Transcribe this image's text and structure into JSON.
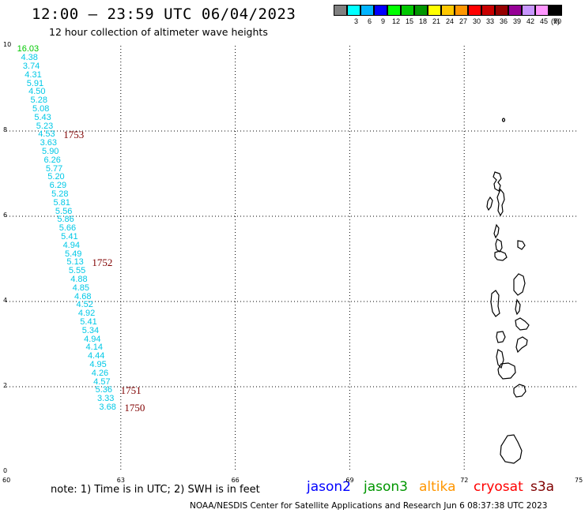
{
  "header": {
    "title": "12:00 — 23:59 UTC 06/04/2023",
    "subtitle": "12 hour collection of altimeter wave heights"
  },
  "colorbar": {
    "unit": "(ft)",
    "bins": [
      {
        "label": "",
        "color": "#808080"
      },
      {
        "label": "3",
        "color": "#00ffff"
      },
      {
        "label": "6",
        "color": "#00b4ff"
      },
      {
        "label": "9",
        "color": "#0000ff"
      },
      {
        "label": "12",
        "color": "#00ff00"
      },
      {
        "label": "15",
        "color": "#00c800"
      },
      {
        "label": "18",
        "color": "#009600"
      },
      {
        "label": "21",
        "color": "#ffff00"
      },
      {
        "label": "24",
        "color": "#ffc800"
      },
      {
        "label": "27",
        "color": "#ff9600"
      },
      {
        "label": "30",
        "color": "#ff0000"
      },
      {
        "label": "33",
        "color": "#c80000"
      },
      {
        "label": "36",
        "color": "#960000"
      },
      {
        "label": "39",
        "color": "#960096"
      },
      {
        "label": "42",
        "color": "#c896ff"
      },
      {
        "label": "45",
        "color": "#ff96ff"
      },
      {
        "label": "70",
        "color": "#000000"
      }
    ]
  },
  "axes": {
    "x_ticks": [
      "60",
      "63",
      "66",
      "69",
      "72",
      "75"
    ],
    "y_ticks": [
      "0",
      "2",
      "4",
      "6",
      "8",
      "10"
    ],
    "xlim": [
      60,
      75
    ],
    "ylim": [
      0,
      10
    ]
  },
  "swh_readings": [
    {
      "lon": 60.2,
      "lat": 9.9,
      "value": "16.03",
      "color": "#00c800"
    },
    {
      "lon": 60.3,
      "lat": 9.7,
      "value": "4.38",
      "color": "#00c8e6"
    },
    {
      "lon": 60.35,
      "lat": 9.5,
      "value": "3.74",
      "color": "#00c8e6"
    },
    {
      "lon": 60.4,
      "lat": 9.3,
      "value": "4.31",
      "color": "#00c8e6"
    },
    {
      "lon": 60.45,
      "lat": 9.1,
      "value": "5.91",
      "color": "#00c8e6"
    },
    {
      "lon": 60.5,
      "lat": 8.9,
      "value": "4.50",
      "color": "#00c8e6"
    },
    {
      "lon": 60.55,
      "lat": 8.7,
      "value": "5.28",
      "color": "#00c8e6"
    },
    {
      "lon": 60.6,
      "lat": 8.5,
      "value": "5.08",
      "color": "#00c8e6"
    },
    {
      "lon": 60.65,
      "lat": 8.3,
      "value": "5.43",
      "color": "#00c8e6"
    },
    {
      "lon": 60.7,
      "lat": 8.1,
      "value": "5.23",
      "color": "#00c8e6"
    },
    {
      "lon": 60.75,
      "lat": 7.9,
      "value": "4.53",
      "color": "#00c8e6"
    },
    {
      "lon": 60.8,
      "lat": 7.7,
      "value": "3.63",
      "color": "#00c8e6"
    },
    {
      "lon": 60.85,
      "lat": 7.5,
      "value": "5.90",
      "color": "#00c8e6"
    },
    {
      "lon": 60.9,
      "lat": 7.3,
      "value": "6.26",
      "color": "#00c8e6"
    },
    {
      "lon": 60.95,
      "lat": 7.1,
      "value": "5.77",
      "color": "#00c8e6"
    },
    {
      "lon": 61.0,
      "lat": 6.9,
      "value": "5.20",
      "color": "#00c8e6"
    },
    {
      "lon": 61.05,
      "lat": 6.7,
      "value": "6.29",
      "color": "#00c8e6"
    },
    {
      "lon": 61.1,
      "lat": 6.5,
      "value": "5.28",
      "color": "#00c8e6"
    },
    {
      "lon": 61.15,
      "lat": 6.3,
      "value": "5.81",
      "color": "#00c8e6"
    },
    {
      "lon": 61.2,
      "lat": 6.1,
      "value": "5.56",
      "color": "#00c8e6"
    },
    {
      "lon": 61.25,
      "lat": 5.9,
      "value": "5.86",
      "color": "#00c8e6"
    },
    {
      "lon": 61.3,
      "lat": 5.7,
      "value": "5.66",
      "color": "#00c8e6"
    },
    {
      "lon": 61.35,
      "lat": 5.5,
      "value": "5.41",
      "color": "#00c8e6"
    },
    {
      "lon": 61.4,
      "lat": 5.3,
      "value": "4.94",
      "color": "#00c8e6"
    },
    {
      "lon": 61.45,
      "lat": 5.1,
      "value": "5.49",
      "color": "#00c8e6"
    },
    {
      "lon": 61.5,
      "lat": 4.9,
      "value": "5.13",
      "color": "#00c8e6"
    },
    {
      "lon": 61.55,
      "lat": 4.7,
      "value": "5.55",
      "color": "#00c8e6"
    },
    {
      "lon": 61.6,
      "lat": 4.5,
      "value": "4.88",
      "color": "#00c8e6"
    },
    {
      "lon": 61.65,
      "lat": 4.3,
      "value": "4.85",
      "color": "#00c8e6"
    },
    {
      "lon": 61.7,
      "lat": 4.1,
      "value": "4.68",
      "color": "#00c8e6"
    },
    {
      "lon": 61.75,
      "lat": 3.9,
      "value": "4.52",
      "color": "#00c8e6"
    },
    {
      "lon": 61.8,
      "lat": 3.7,
      "value": "4.92",
      "color": "#00c8e6"
    },
    {
      "lon": 61.85,
      "lat": 3.5,
      "value": "5.41",
      "color": "#00c8e6"
    },
    {
      "lon": 61.9,
      "lat": 3.3,
      "value": "5.34",
      "color": "#00c8e6"
    },
    {
      "lon": 61.95,
      "lat": 3.1,
      "value": "4.94",
      "color": "#00c8e6"
    },
    {
      "lon": 62.0,
      "lat": 2.9,
      "value": "4.14",
      "color": "#00c8e6"
    },
    {
      "lon": 62.05,
      "lat": 2.7,
      "value": "4.44",
      "color": "#00c8e6"
    },
    {
      "lon": 62.1,
      "lat": 2.5,
      "value": "4.95",
      "color": "#00c8e6"
    },
    {
      "lon": 62.15,
      "lat": 2.3,
      "value": "4.26",
      "color": "#00c8e6"
    },
    {
      "lon": 62.2,
      "lat": 2.1,
      "value": "4.57",
      "color": "#00c8e6"
    },
    {
      "lon": 62.25,
      "lat": 1.9,
      "value": "5.36",
      "color": "#00c8e6"
    },
    {
      "lon": 62.3,
      "lat": 1.7,
      "value": "3.33",
      "color": "#00c8e6"
    },
    {
      "lon": 62.35,
      "lat": 1.5,
      "value": "3.68",
      "color": "#00c8e6"
    }
  ],
  "pass_times": [
    {
      "lon": 60.75,
      "lat": 7.9,
      "label": "1753"
    },
    {
      "lon": 61.5,
      "lat": 4.9,
      "label": "1752"
    },
    {
      "lon": 62.25,
      "lat": 1.9,
      "label": "1751"
    },
    {
      "lon": 62.35,
      "lat": 1.5,
      "label": "1750"
    }
  ],
  "pass_color": "#800000",
  "footer": {
    "note": "note:  1) Time is in UTC;  2) SWH is in feet",
    "satellites": [
      {
        "name": "jason2",
        "color": "#0000ff"
      },
      {
        "name": "jason3",
        "color": "#009600"
      },
      {
        "name": "altika",
        "color": "#ff9600"
      },
      {
        "name": "cryosat",
        "color": "#ff0000"
      },
      {
        "name": "s3a",
        "color": "#800000"
      }
    ],
    "credit": "NOAA/NESDIS Center for Satellite Applications and Research    Jun  6 08:37:38 UTC 2023"
  }
}
